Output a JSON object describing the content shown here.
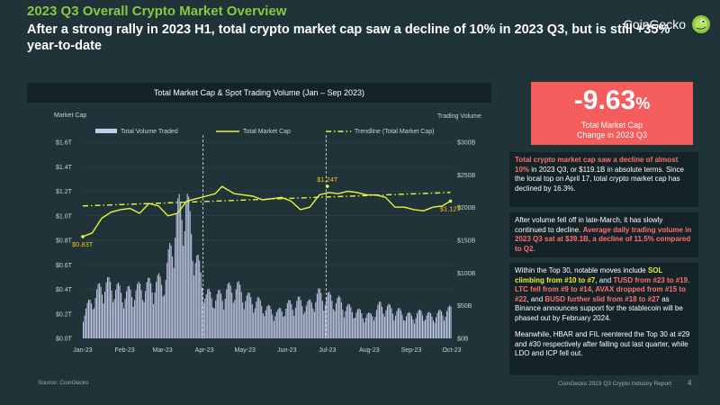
{
  "header": {
    "title": "2023 Q3 Overall Crypto Market Overview",
    "headline": "After a strong rally in 2023 H1, total crypto market cap saw a decline of 10% in 2023 Q3, but is still +35% year-to-date"
  },
  "brand": {
    "name": "CoinGecko",
    "icon": "gecko-logo-icon"
  },
  "colors": {
    "background": "#1f3338",
    "accent_green": "#8dc63f",
    "volume_bars": "#c3c9e8",
    "market_cap_line": "#e5f542",
    "trendline": "#e5f542",
    "stat_box": "#f55c5c",
    "highlight_red": "#ff7070",
    "highlight_yellow": "#e8ef3c"
  },
  "chart_data": {
    "type": "bar+line",
    "title": "Total Market Cap & Spot Trading Volume (Jan – Sep 2023)",
    "left_axis_title": "Market Cap",
    "right_axis_title": "Trading Volume",
    "left_ticks": [
      "$0.0T",
      "$0.2T",
      "$0.4T",
      "$0.6T",
      "$0.8T",
      "$1.0T",
      "$1.2T",
      "$1.4T",
      "$1.6T"
    ],
    "left_ylim": [
      0,
      1.6
    ],
    "right_ticks": [
      "$0B",
      "$50B",
      "$100B",
      "$150B",
      "$200B",
      "$250B",
      "$300B"
    ],
    "right_ylim": [
      0,
      300
    ],
    "x_ticks": [
      "Jan-23",
      "Feb-23",
      "Mar-23",
      "Apr-23",
      "May-23",
      "Jun-23",
      "Jul-23",
      "Aug-23",
      "Sep-23",
      "Oct-23"
    ],
    "x_range": [
      "2023-01-01",
      "2023-10-01"
    ],
    "legend": [
      {
        "name": "Total Volume Traded",
        "kind": "bar"
      },
      {
        "name": "Total Market Cap",
        "kind": "line"
      },
      {
        "name": "Trendline (Total Market Cap)",
        "kind": "dashdot"
      }
    ],
    "legend_position": "top",
    "grid": "horizontal",
    "vertical_markers": [
      "2023-03-31",
      "2023-06-30"
    ],
    "annotations": [
      {
        "text": "$0.83T",
        "x": "2023-01-01",
        "y": 0.83
      },
      {
        "text": "$1.24T",
        "x": "2023-07-01",
        "y": 1.24
      },
      {
        "text": "$1.12T",
        "x": "2023-09-30",
        "y": 1.12
      }
    ],
    "market_cap": {
      "x": [
        "2023-01-01",
        "2023-01-08",
        "2023-01-15",
        "2023-01-22",
        "2023-01-29",
        "2023-02-05",
        "2023-02-12",
        "2023-02-19",
        "2023-02-26",
        "2023-03-05",
        "2023-03-12",
        "2023-03-19",
        "2023-03-26",
        "2023-04-02",
        "2023-04-09",
        "2023-04-14",
        "2023-04-23",
        "2023-04-30",
        "2023-05-07",
        "2023-05-14",
        "2023-05-21",
        "2023-05-28",
        "2023-06-04",
        "2023-06-11",
        "2023-06-18",
        "2023-06-25",
        "2023-07-02",
        "2023-07-09",
        "2023-07-16",
        "2023-07-23",
        "2023-07-30",
        "2023-08-06",
        "2023-08-13",
        "2023-08-20",
        "2023-08-27",
        "2023-09-03",
        "2023-09-10",
        "2023-09-17",
        "2023-09-24",
        "2023-09-30"
      ],
      "y": [
        0.83,
        0.86,
        0.98,
        1.03,
        1.05,
        1.06,
        1.02,
        1.1,
        1.08,
        1.0,
        1.02,
        1.12,
        1.14,
        1.16,
        1.18,
        1.24,
        1.18,
        1.17,
        1.16,
        1.13,
        1.14,
        1.15,
        1.12,
        1.05,
        1.07,
        1.17,
        1.19,
        1.18,
        1.2,
        1.19,
        1.17,
        1.17,
        1.15,
        1.07,
        1.07,
        1.05,
        1.04,
        1.07,
        1.08,
        1.12
      ]
    },
    "trendline": {
      "x": [
        "2023-01-01",
        "2023-09-30"
      ],
      "y": [
        1.08,
        1.19
      ]
    },
    "volume_weekly": {
      "x": [
        "Jan-W1",
        "Jan-W2",
        "Jan-W3",
        "Jan-W4",
        "Feb-W1",
        "Feb-W2",
        "Feb-W3",
        "Feb-W4",
        "Mar-W1",
        "Mar-W2",
        "Mar-W3",
        "Mar-W4",
        "Apr-W1",
        "Apr-W2",
        "Apr-W3",
        "Apr-W4",
        "May-W1",
        "May-W2",
        "May-W3",
        "May-W4",
        "Jun-W1",
        "Jun-W2",
        "Jun-W3",
        "Jun-W4",
        "Jul-W1",
        "Jul-W2",
        "Jul-W3",
        "Jul-W4",
        "Aug-W1",
        "Aug-W2",
        "Aug-W3",
        "Aug-W4",
        "Sep-W1",
        "Sep-W2",
        "Sep-W3",
        "Sep-W4"
      ],
      "y": [
        35,
        55,
        75,
        70,
        60,
        65,
        70,
        75,
        80,
        160,
        190,
        110,
        60,
        55,
        65,
        70,
        55,
        50,
        40,
        35,
        45,
        50,
        45,
        60,
        55,
        50,
        40,
        35,
        30,
        45,
        40,
        35,
        30,
        35,
        30,
        35
      ]
    }
  },
  "stat": {
    "value": "-9.63",
    "unit": "%",
    "caption_line1": "Total Market Cap",
    "caption_line2": "Change in 2023 Q3"
  },
  "notes": {
    "n1": {
      "hl": "Total crypto market cap saw a decline of almost 10%",
      "rest": " in 2023 Q3, or $119.1B in absolute terms. Since the local top on April 17, total crypto market cap has declined by 16.3%."
    },
    "n2": {
      "pre": "After volume fell off in late-March, it has slowly continued to decline. ",
      "hl": "Average daily trading volume in 2023 Q3 sat at $39.1B, a decline of 11.5% compared to Q2."
    },
    "n3": {
      "t1": "Within the Top 30, notable moves include ",
      "y1": "SOL climbing from #10 to #7",
      "t2": ", and ",
      "r1": "TUSD from #23 to #19",
      "t3": ". ",
      "r2": "LTC fell from #9 to #14, AVAX dropped from #15 to #22",
      "t4": ", and ",
      "r3": "BUSD further slid from #18 to #27",
      "t5": " as Binance announces support for the stablecoin will be phased out by February 2024.",
      "p2": "Meanwhile, HBAR and FIL reentered the Top 30 at #29 and #30 respectively after falling out last quarter, while LDO and ICP fell out."
    }
  },
  "footer": {
    "source_label": "Source: ",
    "source_name": "CoinGecko",
    "report": "CoinGecko 2023 Q3 Crypto Industry Report",
    "page": "4"
  }
}
